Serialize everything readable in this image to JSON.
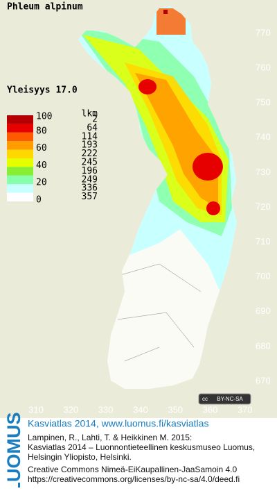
{
  "header": {
    "title": "Phleum alpinum",
    "frequency": "Yleisyys  17.0"
  },
  "legend": {
    "count_header": "lkm",
    "labels": [
      "100",
      "80",
      "60",
      "40",
      "20",
      "0"
    ],
    "classes": [
      {
        "color": "#b40000",
        "count": "2"
      },
      {
        "color": "#e60000",
        "count": "64"
      },
      {
        "color": "#ff5a00",
        "count": "114"
      },
      {
        "color": "#ff9c00",
        "count": "193"
      },
      {
        "color": "#ffd800",
        "count": "222"
      },
      {
        "color": "#e6ff00",
        "count": "245"
      },
      {
        "color": "#88ee33",
        "count": "196"
      },
      {
        "color": "#88ffaa",
        "count": "249"
      },
      {
        "color": "#c8ffff",
        "count": "336"
      },
      {
        "color": "#ffffff",
        "count": "357"
      }
    ]
  },
  "map": {
    "northing": [
      "770",
      "760",
      "750",
      "740",
      "730",
      "720",
      "710",
      "700",
      "690",
      "680",
      "670"
    ],
    "easting": [
      "310",
      "320",
      "330",
      "340",
      "350",
      "360",
      "370"
    ],
    "cc_badge": "BY-NC-SA"
  },
  "footer": {
    "logo": "LUOMUS",
    "headline": "Kasviatlas 2014, www.luomus.fi/kasviatlas",
    "citation": [
      "Lampinen, R., Lahti, T. & Heikkinen M. 2015:",
      "Kasviatlas 2014 – Luonnontieteellinen keskusmuseo Luomus,",
      "Helsingin Yliopisto, Helsinki."
    ],
    "license": [
      "Creative Commons Nimeä-EiKaupallinen-JaaSamoin 4.0",
      "https://creativecommons.org/licenses/by-nc-sa/4.0/deed.fi"
    ]
  }
}
